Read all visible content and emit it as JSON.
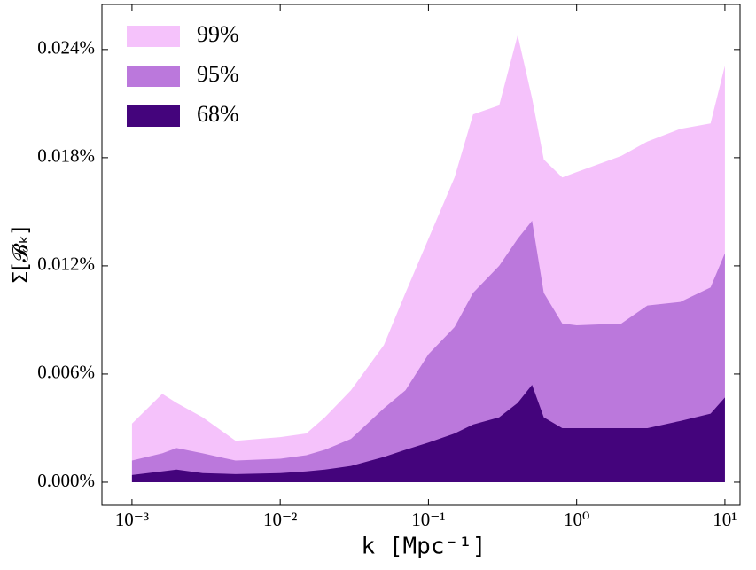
{
  "chart_data": {
    "type": "area",
    "x_label": "k [Mpc⁻¹]",
    "y_label": "Σ[𝓑ₖ]",
    "x": [
      0.001,
      0.0016,
      0.002,
      0.003,
      0.005,
      0.01,
      0.015,
      0.02,
      0.03,
      0.05,
      0.07,
      0.1,
      0.15,
      0.2,
      0.3,
      0.4,
      0.5,
      0.6,
      0.8,
      1,
      2,
      3,
      5,
      8,
      10
    ],
    "series": [
      {
        "name": "99%",
        "color": "#f5c2fb",
        "values": [
          0.00325,
          0.0049,
          0.0044,
          0.0036,
          0.0023,
          0.0025,
          0.0027,
          0.0036,
          0.0051,
          0.0076,
          0.0105,
          0.0135,
          0.0169,
          0.0204,
          0.0209,
          0.0248,
          0.0213,
          0.0179,
          0.0169,
          0.0172,
          0.0181,
          0.0189,
          0.0196,
          0.0199,
          0.0231
        ]
      },
      {
        "name": "95%",
        "color": "#bb78dc",
        "values": [
          0.0012,
          0.0016,
          0.0019,
          0.0016,
          0.0012,
          0.0013,
          0.0015,
          0.0018,
          0.0024,
          0.0041,
          0.0051,
          0.0071,
          0.0086,
          0.0105,
          0.012,
          0.0135,
          0.0145,
          0.0105,
          0.0088,
          0.0087,
          0.0088,
          0.0098,
          0.01,
          0.0108,
          0.0127
        ]
      },
      {
        "name": "68%",
        "color": "#44047c",
        "values": [
          0.0004,
          0.0006,
          0.0007,
          0.0005,
          0.00045,
          0.0005,
          0.0006,
          0.0007,
          0.0009,
          0.0014,
          0.0018,
          0.0022,
          0.0027,
          0.0032,
          0.0036,
          0.0044,
          0.0054,
          0.0036,
          0.003,
          0.003,
          0.003,
          0.003,
          0.0034,
          0.0038,
          0.0047
        ]
      }
    ],
    "x_log": true,
    "xlim": [
      0.000627,
      12.65
    ],
    "xticks": [
      {
        "value": 0.001,
        "label": "10⁻³"
      },
      {
        "value": 0.01,
        "label": "10⁻²"
      },
      {
        "value": 0.1,
        "label": "10⁻¹"
      },
      {
        "value": 1,
        "label": "10⁰"
      },
      {
        "value": 10,
        "label": "10¹"
      }
    ],
    "ylim": [
      -0.00128,
      0.0265
    ],
    "yticks": [
      {
        "value": 0,
        "label": "0.000%"
      },
      {
        "value": 0.006,
        "label": "0.006%"
      },
      {
        "value": 0.012,
        "label": "0.012%"
      },
      {
        "value": 0.018,
        "label": "0.018%"
      },
      {
        "value": 0.024,
        "label": "0.024%"
      }
    ],
    "legend": "upper left"
  }
}
